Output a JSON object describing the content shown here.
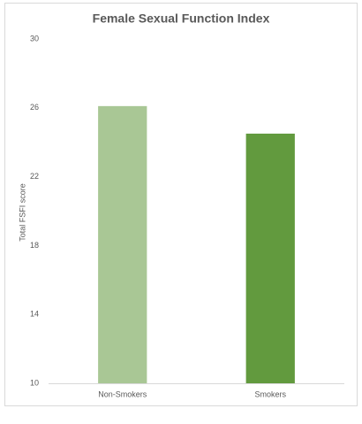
{
  "chart_data": {
    "type": "bar",
    "title": "Female Sexual Function Index",
    "y_label": "Total FSFI score",
    "categories": [
      "Non-Smokers",
      "Smokers"
    ],
    "values": [
      26.1,
      24.5
    ],
    "colors": [
      "#a9c795",
      "#629a3e"
    ],
    "ylim": [
      10,
      30
    ],
    "yticks": [
      10,
      14,
      18,
      22,
      26,
      30
    ],
    "grid": false
  }
}
